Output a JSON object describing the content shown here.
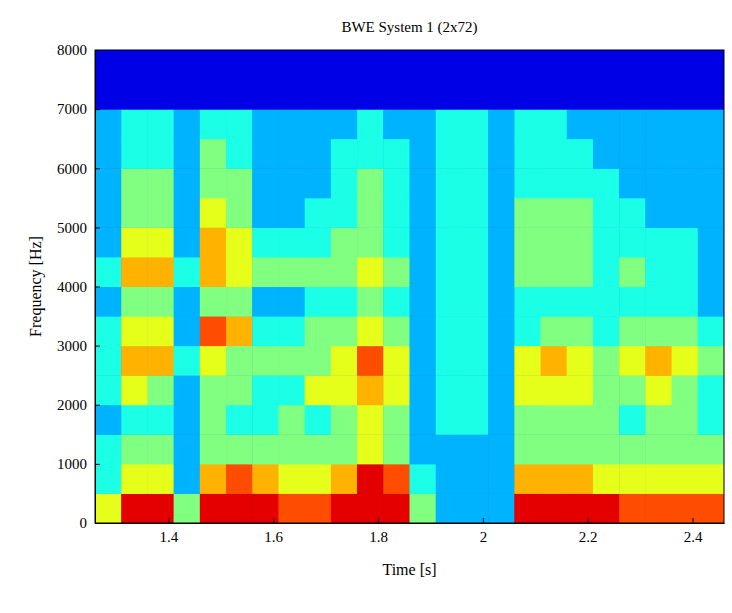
{
  "chart_data": {
    "type": "heatmap",
    "title": "BWE System 1 (2x72)",
    "x_label": "Time [s]",
    "y_label": "Frequency [Hz]",
    "xlim": [
      1.26,
      2.46
    ],
    "ylim": [
      0,
      8000
    ],
    "xticks": [
      1.4,
      1.6,
      1.8,
      2,
      2.2,
      2.4
    ],
    "yticks": [
      0,
      1000,
      2000,
      3000,
      4000,
      5000,
      6000,
      7000,
      8000
    ],
    "x_edges": [
      1.26,
      1.31,
      1.36,
      1.41,
      1.46,
      1.51,
      1.56,
      1.61,
      1.66,
      1.71,
      1.76,
      1.81,
      1.86,
      1.91,
      1.96,
      2.01,
      2.06,
      2.11,
      2.16,
      2.21,
      2.26,
      2.31,
      2.36,
      2.41,
      2.46
    ],
    "y_edges": [
      0,
      500,
      1000,
      1500,
      2000,
      2500,
      3000,
      3500,
      4000,
      4500,
      5000,
      5500,
      6000,
      6500,
      7000,
      7500,
      8000
    ],
    "color_range": [
      1,
      9
    ],
    "cells": [
      [
        6,
        4,
        4,
        3,
        4,
        4,
        4,
        3,
        4,
        3,
        3,
        3,
        3,
        3,
        1,
        1
      ],
      [
        9,
        6,
        5,
        4,
        6,
        7,
        6,
        5,
        7,
        6,
        5,
        5,
        4,
        4,
        1,
        1
      ],
      [
        9,
        6,
        5,
        4,
        5,
        7,
        6,
        5,
        7,
        6,
        5,
        5,
        4,
        4,
        1,
        1
      ],
      [
        5,
        3,
        3,
        3,
        3,
        4,
        3,
        3,
        4,
        3,
        3,
        3,
        3,
        3,
        1,
        1
      ],
      [
        9,
        7,
        5,
        5,
        5,
        6,
        8,
        5,
        7,
        7,
        6,
        5,
        5,
        4,
        1,
        1
      ],
      [
        9,
        8,
        5,
        4,
        5,
        5,
        7,
        5,
        6,
        6,
        5,
        5,
        4,
        4,
        1,
        1
      ],
      [
        9,
        7,
        5,
        4,
        4,
        5,
        4,
        3,
        5,
        4,
        3,
        3,
        3,
        3,
        1,
        1
      ],
      [
        8,
        6,
        5,
        5,
        4,
        5,
        4,
        3,
        5,
        4,
        3,
        3,
        3,
        3,
        1,
        1
      ],
      [
        8,
        6,
        5,
        4,
        6,
        5,
        5,
        4,
        5,
        4,
        4,
        3,
        3,
        3,
        1,
        1
      ],
      [
        9,
        7,
        5,
        5,
        6,
        6,
        5,
        4,
        5,
        5,
        4,
        4,
        4,
        3,
        1,
        1
      ],
      [
        9,
        9,
        6,
        6,
        7,
        8,
        6,
        5,
        6,
        5,
        5,
        5,
        4,
        4,
        1,
        1
      ],
      [
        9,
        8,
        5,
        5,
        6,
        6,
        5,
        4,
        5,
        4,
        4,
        4,
        4,
        3,
        1,
        1
      ],
      [
        5,
        4,
        3,
        3,
        3,
        3,
        3,
        3,
        3,
        3,
        3,
        3,
        3,
        3,
        1,
        1
      ],
      [
        3,
        3,
        3,
        4,
        4,
        4,
        4,
        4,
        4,
        4,
        4,
        4,
        4,
        4,
        1,
        1
      ],
      [
        3,
        3,
        3,
        4,
        4,
        4,
        4,
        4,
        4,
        4,
        4,
        4,
        4,
        4,
        1,
        1
      ],
      [
        3,
        3,
        3,
        3,
        3,
        3,
        3,
        3,
        3,
        3,
        3,
        3,
        3,
        3,
        1,
        1
      ],
      [
        9,
        7,
        5,
        5,
        6,
        6,
        4,
        4,
        5,
        5,
        5,
        4,
        4,
        4,
        1,
        1
      ],
      [
        9,
        7,
        5,
        5,
        6,
        7,
        5,
        4,
        5,
        5,
        5,
        4,
        4,
        4,
        1,
        1
      ],
      [
        9,
        7,
        5,
        5,
        6,
        6,
        5,
        4,
        5,
        5,
        5,
        4,
        4,
        3,
        1,
        1
      ],
      [
        9,
        6,
        5,
        5,
        5,
        5,
        4,
        4,
        4,
        4,
        4,
        4,
        3,
        3,
        1,
        1
      ],
      [
        8,
        6,
        5,
        4,
        5,
        6,
        5,
        4,
        5,
        4,
        4,
        3,
        3,
        3,
        1,
        1
      ],
      [
        8,
        6,
        5,
        5,
        6,
        7,
        5,
        4,
        4,
        4,
        3,
        3,
        3,
        3,
        1,
        1
      ],
      [
        8,
        6,
        5,
        5,
        5,
        6,
        5,
        4,
        4,
        4,
        3,
        3,
        3,
        3,
        1,
        1
      ],
      [
        8,
        6,
        5,
        4,
        4,
        5,
        4,
        3,
        3,
        3,
        3,
        3,
        3,
        3,
        1,
        1
      ]
    ]
  }
}
